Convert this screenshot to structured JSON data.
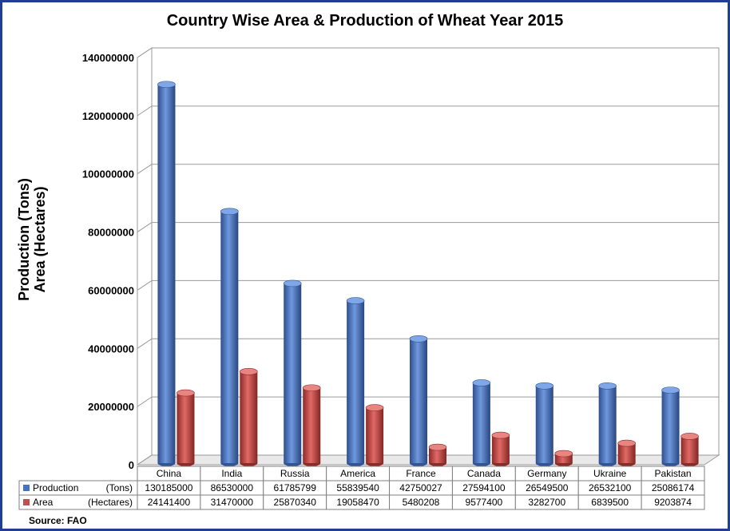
{
  "chart_data": {
    "type": "bar",
    "title": "Country Wise Area & Production of Wheat Year 2015",
    "ylabel_line1": "Production (Tons)",
    "ylabel_line2": "Area (Hectares)",
    "ylim": [
      0,
      140000000
    ],
    "yticks": [
      "0",
      "20000000",
      "40000000",
      "60000000",
      "80000000",
      "100000000",
      "120000000",
      "140000000"
    ],
    "categories": [
      "China",
      "India",
      "Russia",
      "America",
      "France",
      "Canada",
      "Germany",
      "Ukraine",
      "Pakistan"
    ],
    "series": [
      {
        "name": "Production",
        "unit": "(Tons)",
        "color": "#4472c4",
        "values": [
          130185000,
          86530000,
          61785799,
          55839540,
          42750027,
          27594100,
          26549500,
          26532100,
          25086174
        ],
        "labels": [
          "130185000",
          "86530000",
          "61785799",
          "55839540",
          "42750027",
          "27594100",
          "26549500",
          "26532100",
          "25086174"
        ]
      },
      {
        "name": "Area",
        "unit": "(Hectares)",
        "color": "#c0504d",
        "values": [
          24141400,
          31470000,
          25870340,
          19058470,
          5480208,
          9577400,
          3282700,
          6839500,
          9203874
        ],
        "labels": [
          "24141400",
          "31470000",
          "25870340",
          "19058470",
          "5480208",
          "9577400",
          "3282700",
          "6839500",
          "9203874"
        ]
      }
    ],
    "grid": true,
    "legend": "data-table-left",
    "source": "Source: FAO"
  }
}
